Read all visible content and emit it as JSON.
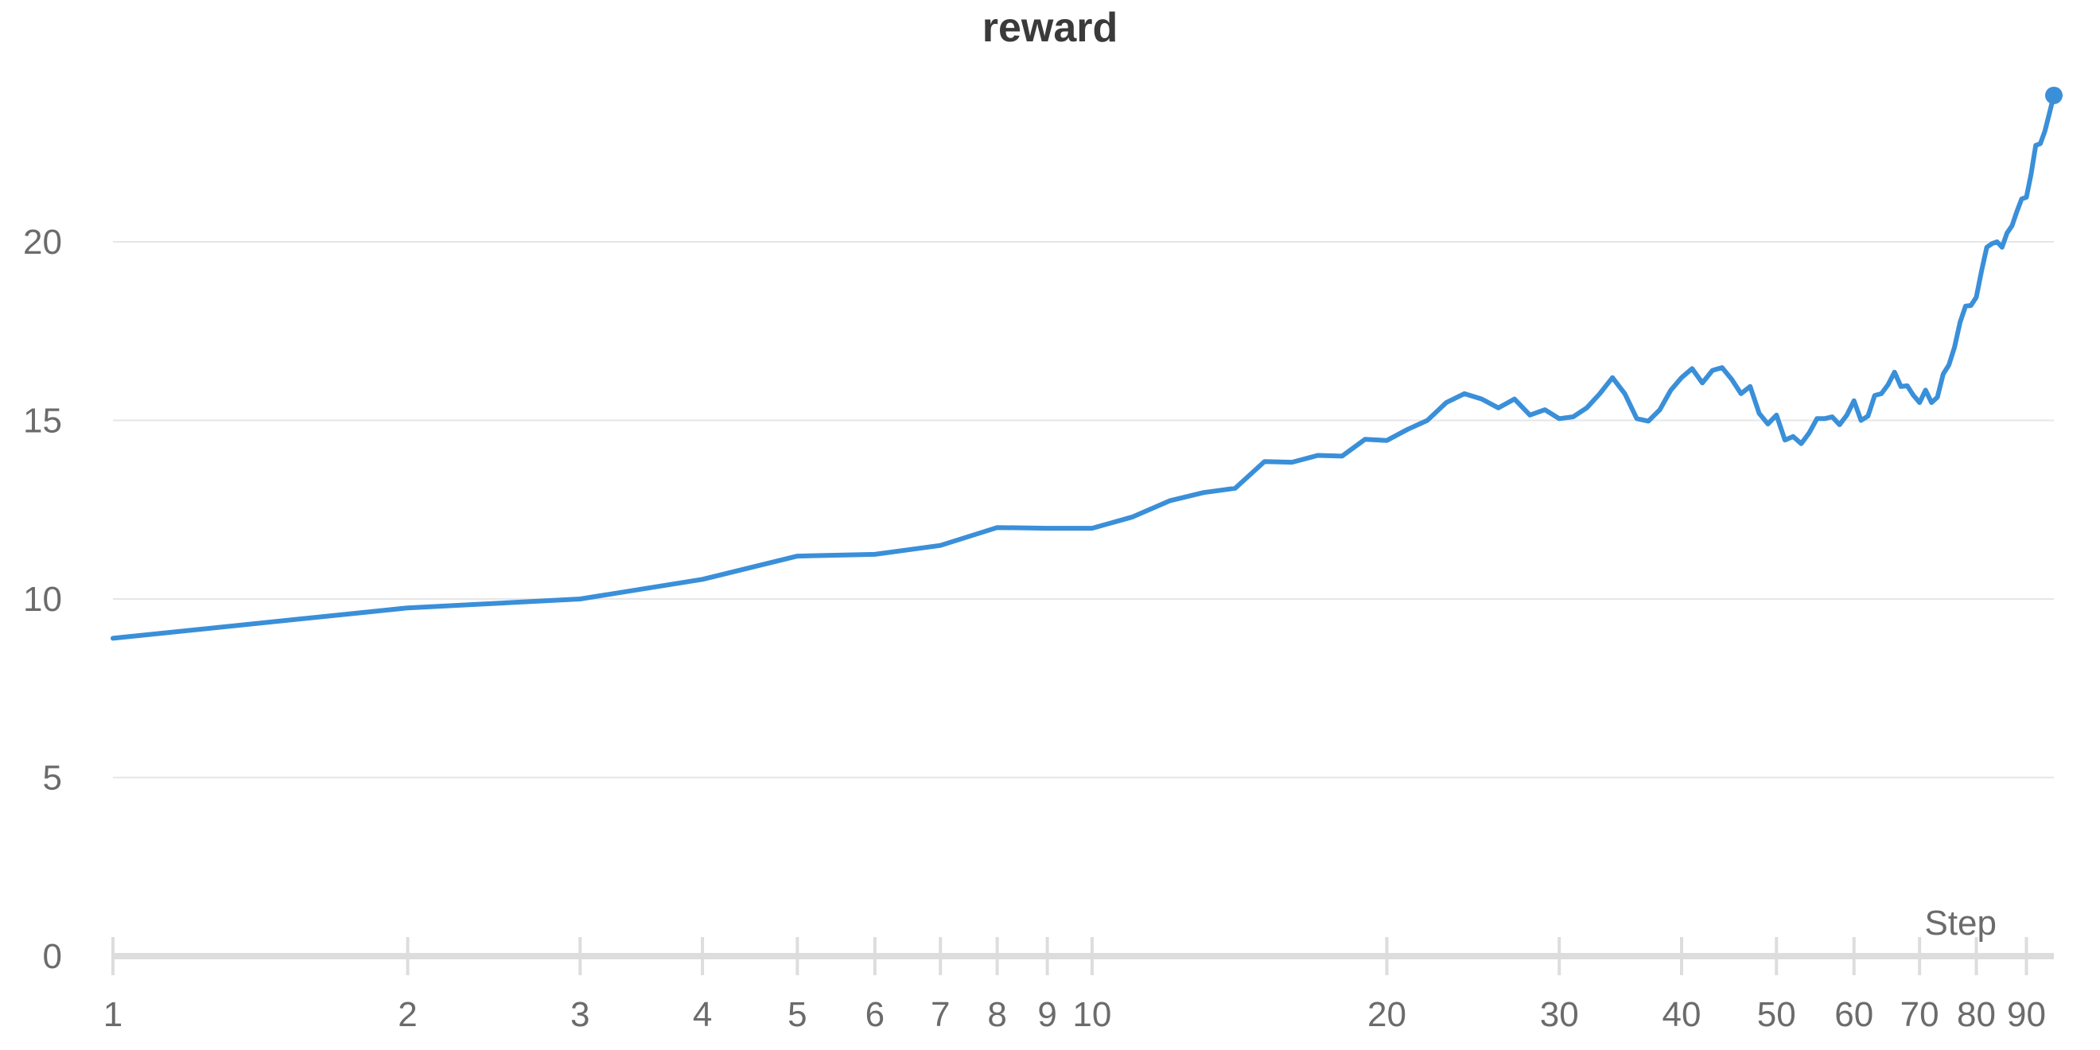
{
  "chart_data": {
    "type": "line",
    "title": "reward",
    "xlabel": "Step",
    "ylabel": "",
    "x_scale": "log",
    "xlim": [
      1,
      96
    ],
    "ylim": [
      0,
      24.5
    ],
    "grid": "horizontal",
    "y_ticks": [
      0,
      5,
      10,
      15,
      20
    ],
    "y_tick_labels": [
      "0",
      "5",
      "10",
      "15",
      "20"
    ],
    "x_ticks": [
      1,
      2,
      3,
      4,
      5,
      6,
      7,
      8,
      9,
      10,
      20,
      30,
      40,
      50,
      60,
      70,
      80,
      90
    ],
    "x_tick_labels": [
      "1",
      "2",
      "3",
      "4",
      "5",
      "6",
      "7",
      "8",
      "9",
      "10",
      "20",
      "30",
      "40",
      "50",
      "60",
      "70",
      "80",
      "90"
    ],
    "colors": {
      "line": "#3a8fd9",
      "grid": "#e6e6e6",
      "axis": "#dddddd"
    },
    "series": [
      {
        "x": [
          1,
          2,
          3,
          4,
          5,
          6,
          7,
          8,
          9,
          10,
          11,
          12,
          13,
          14,
          15,
          16,
          17,
          18,
          19,
          20,
          21,
          22,
          23,
          24,
          25,
          26,
          27,
          28,
          29,
          30,
          31,
          32,
          33,
          34,
          35,
          36,
          37,
          38,
          39,
          40,
          41,
          42,
          43,
          44,
          45,
          46,
          47,
          48,
          49,
          50,
          51,
          52,
          53,
          54,
          55,
          56,
          57,
          58,
          59,
          60,
          61,
          62,
          63,
          64,
          65,
          66,
          67,
          68,
          69,
          70,
          71,
          72,
          73,
          74,
          75,
          76,
          77,
          78,
          79,
          80,
          81,
          82,
          83,
          84,
          85,
          86,
          87,
          88,
          89,
          90,
          91,
          92,
          93,
          94,
          95,
          96
        ],
        "values": [
          8.9,
          9.75,
          10.0,
          10.55,
          11.2,
          11.25,
          11.5,
          12.0,
          11.98,
          11.98,
          12.3,
          12.75,
          12.98,
          13.1,
          13.85,
          13.83,
          14.02,
          14.0,
          14.47,
          14.44,
          14.75,
          15.0,
          15.5,
          15.75,
          15.6,
          15.35,
          15.6,
          15.15,
          15.3,
          15.05,
          15.1,
          15.35,
          15.75,
          16.2,
          15.75,
          15.05,
          14.98,
          15.3,
          15.85,
          16.2,
          16.45,
          16.05,
          16.4,
          16.48,
          16.15,
          15.75,
          15.95,
          15.2,
          14.9,
          15.15,
          14.45,
          14.55,
          14.35,
          14.65,
          15.05,
          15.05,
          15.1,
          14.88,
          15.15,
          15.55,
          15.0,
          15.12,
          15.7,
          15.75,
          16.0,
          16.35,
          15.95,
          15.97,
          15.7,
          15.5,
          15.85,
          15.5,
          15.65,
          16.3,
          16.55,
          17.05,
          17.75,
          18.2,
          18.22,
          18.45,
          19.2,
          19.85,
          19.95,
          20.0,
          19.85,
          20.25,
          20.45,
          20.85,
          21.2,
          21.25,
          21.9,
          22.7,
          22.75,
          23.1,
          23.6,
          24.1
        ]
      }
    ]
  }
}
